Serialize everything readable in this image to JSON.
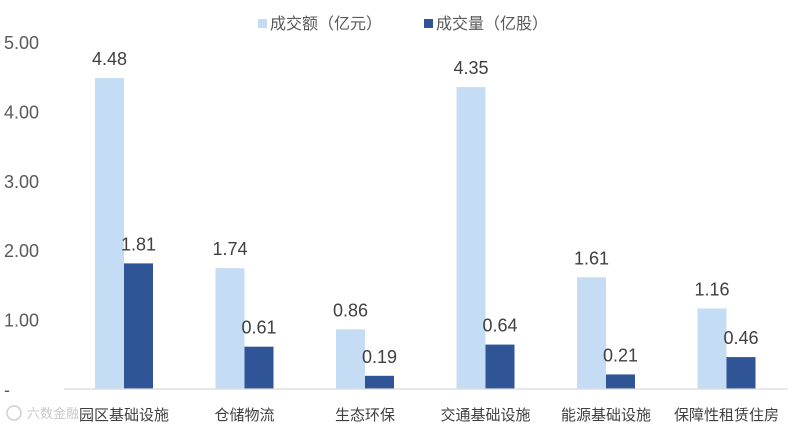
{
  "chart_data": {
    "type": "bar",
    "categories": [
      "园区基础设施",
      "仓储物流",
      "生态环保",
      "交通基础设施",
      "能源基础设施",
      "保障性租赁住房"
    ],
    "series": [
      {
        "name": "成交额（亿元）",
        "values": [
          4.48,
          1.74,
          0.86,
          4.35,
          1.61,
          1.16
        ],
        "color": "#c5dcf5"
      },
      {
        "name": "成交量（亿股）",
        "values": [
          1.81,
          0.61,
          0.19,
          0.64,
          0.21,
          0.46
        ],
        "color": "#2f5597"
      }
    ],
    "yticks": [
      "5.00",
      "4.00",
      "3.00",
      "2.00",
      "1.00",
      "-"
    ],
    "ylim": [
      0,
      5
    ],
    "grid": false,
    "legend": "top-center"
  },
  "watermark": {
    "text": "六数金融"
  }
}
